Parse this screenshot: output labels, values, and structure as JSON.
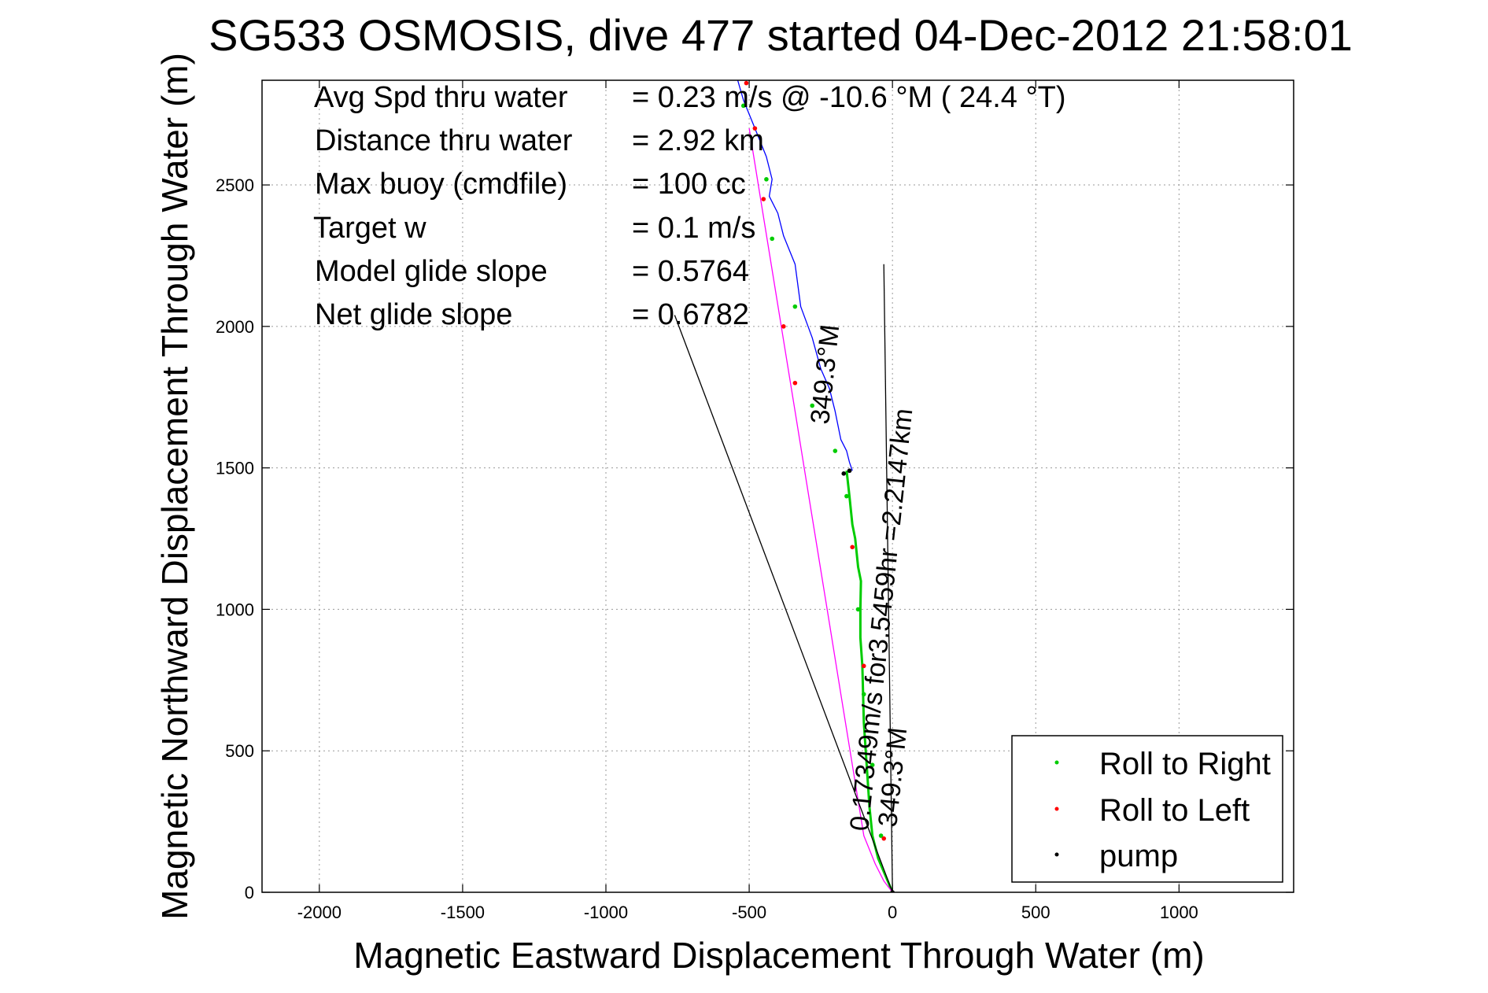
{
  "chart_data": {
    "type": "line",
    "title": "SG533 OSMOSIS, dive 477 started 04-Dec-2012 21:58:01",
    "xlabel": "Magnetic Eastward Displacement Through Water (m)",
    "ylabel": "Magnetic Northward Displacement Through Water (m)",
    "xlim": [
      -2200,
      1400
    ],
    "ylim": [
      0,
      2870
    ],
    "grid": true,
    "xticks": [
      -2000,
      -1500,
      -1000,
      -500,
      0,
      500,
      1000
    ],
    "yticks": [
      0,
      500,
      1000,
      1500,
      2000,
      2500
    ],
    "stats": [
      {
        "label": "Avg Spd thru water",
        "value": "=  0.23 m/s @ -10.6 °M ( 24.4 °T)"
      },
      {
        "label": "Distance thru water",
        "value": "=  2.92 km"
      },
      {
        "label": "Max buoy (cmdfile)",
        "value": "= 100 cc"
      },
      {
        "label": "Target w",
        "value": "= 0.1 m/s"
      },
      {
        "label": "Model glide slope",
        "value": "= 0.5764"
      },
      {
        "label": "Net glide slope",
        "value": "= 0.6782"
      }
    ],
    "annotations": [
      {
        "text": "0.17349m/s for3.5459hr =2.2147km",
        "color": "#000000"
      },
      {
        "text": "349.3°M",
        "color": "#000000"
      },
      {
        "text": "349.3°M",
        "color": "#000000"
      }
    ],
    "legend": {
      "position": "bottom-right",
      "entries": [
        {
          "label": "Roll to Right",
          "color": "#00cc00"
        },
        {
          "label": "Roll to Left",
          "color": "#ff0000"
        },
        {
          "label": "pump",
          "color": "#000000"
        }
      ]
    },
    "series": [
      {
        "name": "",
        "color": "#0000ff",
        "x": [
          -540,
          -520,
          -480,
          -440,
          -420,
          -430,
          -400,
          -380,
          -340,
          -320,
          -280,
          -250,
          -220,
          -200,
          -180,
          -160,
          -150,
          -140
        ],
        "y": [
          2870,
          2800,
          2700,
          2600,
          2520,
          2460,
          2400,
          2320,
          2220,
          2070,
          1960,
          1850,
          1780,
          1700,
          1600,
          1560,
          1520,
          1490
        ]
      },
      {
        "name": "",
        "color": "#00cc00",
        "x": [
          -160,
          -150,
          -140,
          -130,
          -120,
          -110,
          -112,
          -112,
          -105,
          -100,
          -90,
          -80,
          -70,
          -50,
          -25,
          0
        ],
        "y": [
          1490,
          1400,
          1300,
          1250,
          1150,
          1100,
          1000,
          900,
          800,
          600,
          450,
          300,
          200,
          120,
          60,
          0
        ]
      },
      {
        "name": "",
        "color": "#ff00ff",
        "x": [
          -500,
          -460,
          -420,
          -380,
          -340,
          -300,
          -260,
          -220,
          -180,
          -140,
          -100,
          -60,
          -30,
          0
        ],
        "y": [
          2700,
          2450,
          2200,
          1950,
          1700,
          1450,
          1200,
          950,
          700,
          450,
          200,
          100,
          40,
          0
        ]
      },
      {
        "name": "",
        "color": "#000000",
        "x": [
          0,
          -760
        ],
        "y": [
          0,
          2040
        ]
      },
      {
        "name": "",
        "color": "#000000",
        "x": [
          0,
          -30
        ],
        "y": [
          0,
          2220
        ]
      }
    ],
    "markers": {
      "roll_right": {
        "x": [
          -520,
          -440,
          -420,
          -340,
          -280,
          -200,
          -160,
          -120,
          -100,
          -70,
          -40
        ],
        "y": [
          2780,
          2520,
          2310,
          2070,
          1720,
          1560,
          1400,
          1000,
          700,
          450,
          200
        ]
      },
      "roll_left": {
        "x": [
          -510,
          -480,
          -450,
          -380,
          -340,
          -140,
          -100,
          -30
        ],
        "y": [
          2860,
          2700,
          2450,
          2000,
          1800,
          1220,
          800,
          190
        ]
      },
      "pump": {
        "x": [
          -170,
          -150,
          0
        ],
        "y": [
          1480,
          1490,
          0
        ]
      }
    }
  }
}
